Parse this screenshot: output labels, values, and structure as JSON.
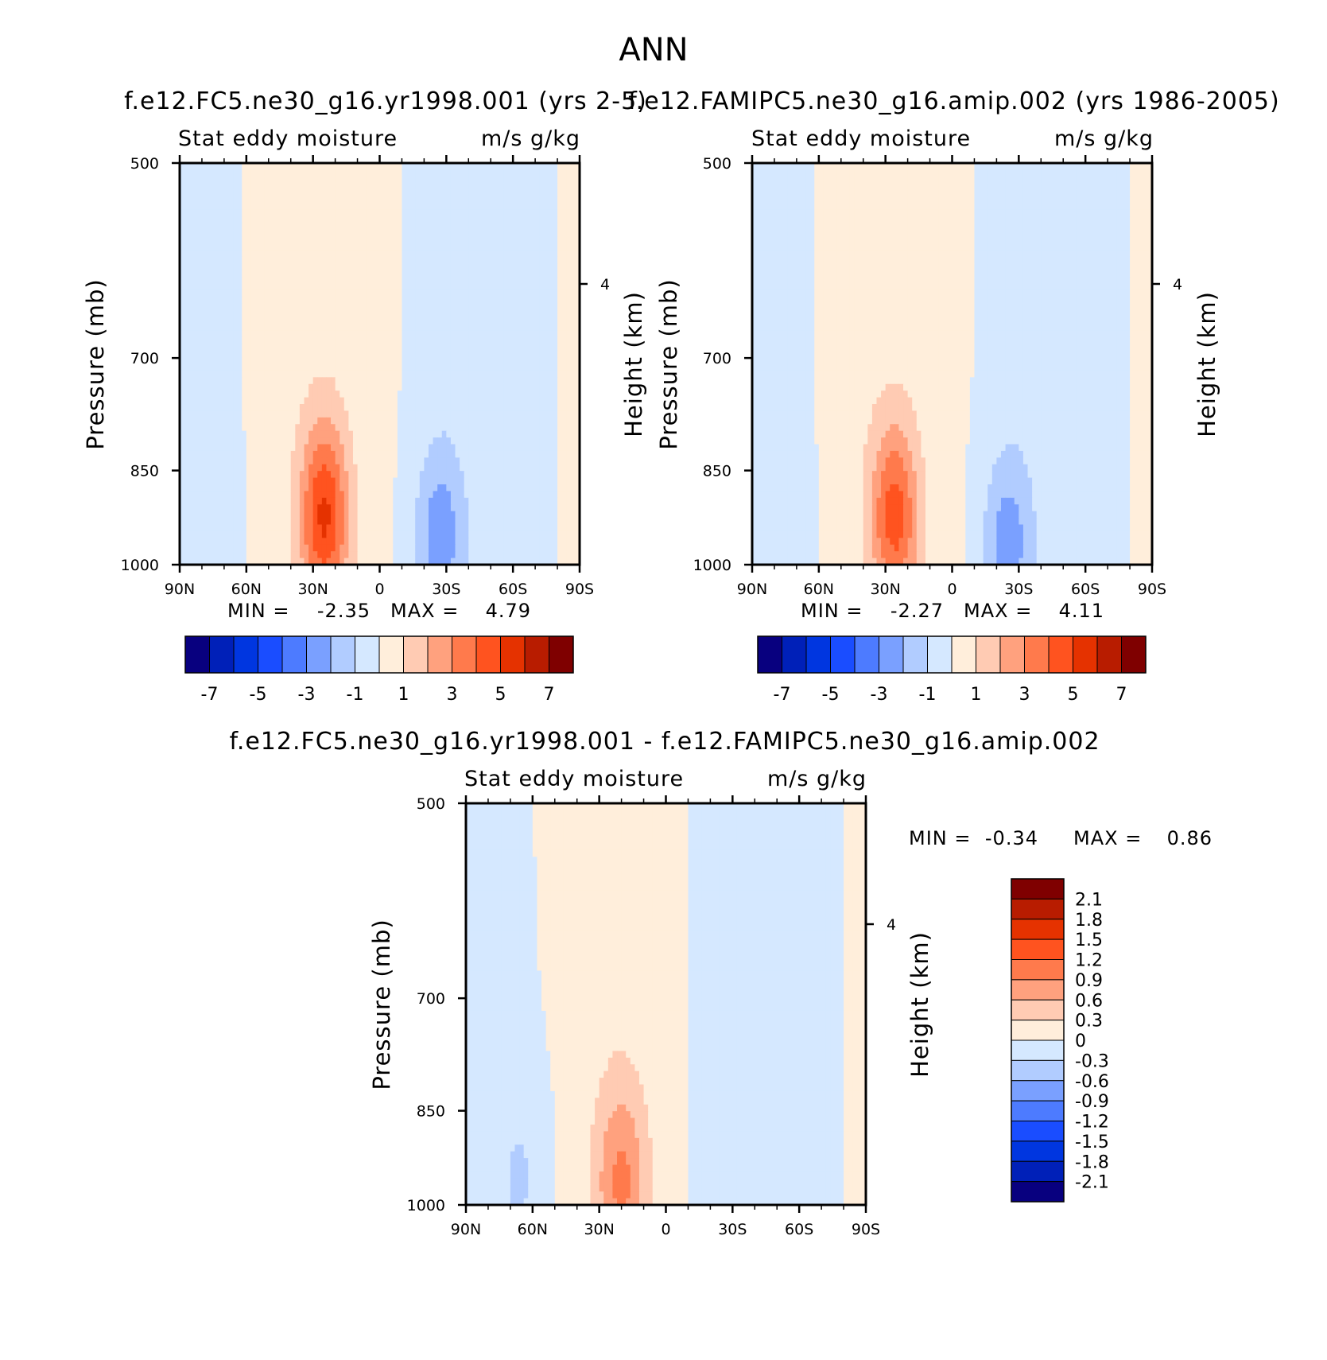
{
  "figure": {
    "title": "ANN"
  },
  "palette": {
    "colors": [
      "#08007f",
      "#0020b8",
      "#0036e0",
      "#1a4dff",
      "#4d7bff",
      "#7aa0ff",
      "#b1ccff",
      "#d5e8ff",
      "#ffeedb",
      "#ffcbb3",
      "#ffa17e",
      "#ff7a4c",
      "#ff531f",
      "#e53200",
      "#b81c00",
      "#7f0000"
    ]
  },
  "chart_data": [
    {
      "type": "heatmap",
      "title": "f.e12.FC5.ne30_g16.yr1998.001 (yrs 2-5)",
      "left_string": "Stat eddy moisture",
      "right_string": "m/s g/kg",
      "ylabel": "Pressure (mb)",
      "ylabel_right": "Height (km)",
      "x_ticks": [
        "90N",
        "60N",
        "30N",
        "0",
        "30S",
        "60S",
        "90S"
      ],
      "y_ticks": [
        "500",
        "700",
        "850",
        "1000"
      ],
      "y_right_ticks": [
        "4"
      ],
      "x_range": [
        90,
        -90
      ],
      "y_range": [
        1000,
        500
      ],
      "levels": [
        -7,
        -6,
        -5,
        -4,
        -3,
        -2,
        -1,
        0,
        1,
        2,
        3,
        4,
        5,
        6,
        7
      ],
      "level_labels": [
        "-7",
        "-5",
        "-3",
        "-1",
        "1",
        "3",
        "5",
        "7"
      ],
      "min_label": "MIN =",
      "min": "-2.35",
      "max_label": "MAX =",
      "max": "4.79",
      "features": [
        {
          "lat": 25,
          "p": 920,
          "value": 4.79
        },
        {
          "lat": -27,
          "p": 950,
          "value": -2.35
        },
        {
          "lat": 75,
          "p": 750,
          "value": -0.6
        },
        {
          "lat": 50,
          "p": 700,
          "value": 0.6
        }
      ]
    },
    {
      "type": "heatmap",
      "title": "f.e12.FAMIPC5.ne30_g16.amip.002 (yrs 1986-2005)",
      "left_string": "Stat eddy moisture",
      "right_string": "m/s g/kg",
      "ylabel": "Pressure (mb)",
      "ylabel_right": "Height (km)",
      "x_ticks": [
        "90N",
        "60N",
        "30N",
        "0",
        "30S",
        "60S",
        "90S"
      ],
      "y_ticks": [
        "500",
        "700",
        "850",
        "1000"
      ],
      "y_right_ticks": [
        "4"
      ],
      "x_range": [
        90,
        -90
      ],
      "y_range": [
        1000,
        500
      ],
      "levels": [
        -7,
        -6,
        -5,
        -4,
        -3,
        -2,
        -1,
        0,
        1,
        2,
        3,
        4,
        5,
        6,
        7
      ],
      "level_labels": [
        "-7",
        "-5",
        "-3",
        "-1",
        "1",
        "3",
        "5",
        "7"
      ],
      "min_label": "MIN =",
      "min": "-2.27",
      "max_label": "MAX =",
      "max": "4.11",
      "features": [
        {
          "lat": 26,
          "p": 920,
          "value": 4.11
        },
        {
          "lat": -25,
          "p": 960,
          "value": -2.27
        },
        {
          "lat": 75,
          "p": 750,
          "value": -0.5
        },
        {
          "lat": 50,
          "p": 700,
          "value": 0.6
        }
      ]
    },
    {
      "type": "heatmap",
      "title": "f.e12.FC5.ne30_g16.yr1998.001 - f.e12.FAMIPC5.ne30_g16.amip.002",
      "left_string": "Stat eddy moisture",
      "right_string": "m/s g/kg",
      "ylabel": "Pressure (mb)",
      "ylabel_right": "Height (km)",
      "x_ticks": [
        "90N",
        "60N",
        "30N",
        "0",
        "30S",
        "60S",
        "90S"
      ],
      "y_ticks": [
        "500",
        "700",
        "850",
        "1000"
      ],
      "y_right_ticks": [
        "4"
      ],
      "x_range": [
        90,
        -90
      ],
      "y_range": [
        1000,
        500
      ],
      "levels": [
        -2.1,
        -1.8,
        -1.5,
        -1.2,
        -0.9,
        -0.6,
        -0.3,
        0,
        0.3,
        0.6,
        0.9,
        1.2,
        1.5,
        1.8,
        2.1
      ],
      "level_labels": [
        "-2.1",
        "-1.8",
        "-1.5",
        "-1.2",
        "-0.9",
        "-0.6",
        "-0.3",
        "0",
        "0.3",
        "0.6",
        "0.9",
        "1.2",
        "1.5",
        "1.8",
        "2.1"
      ],
      "min_label": "MIN =",
      "min": "-0.34",
      "max_label": "MAX =",
      "max": "0.86",
      "features": [
        {
          "lat": 20,
          "p": 960,
          "value": 0.86
        },
        {
          "lat": 65,
          "p": 950,
          "value": -0.3
        }
      ]
    }
  ]
}
